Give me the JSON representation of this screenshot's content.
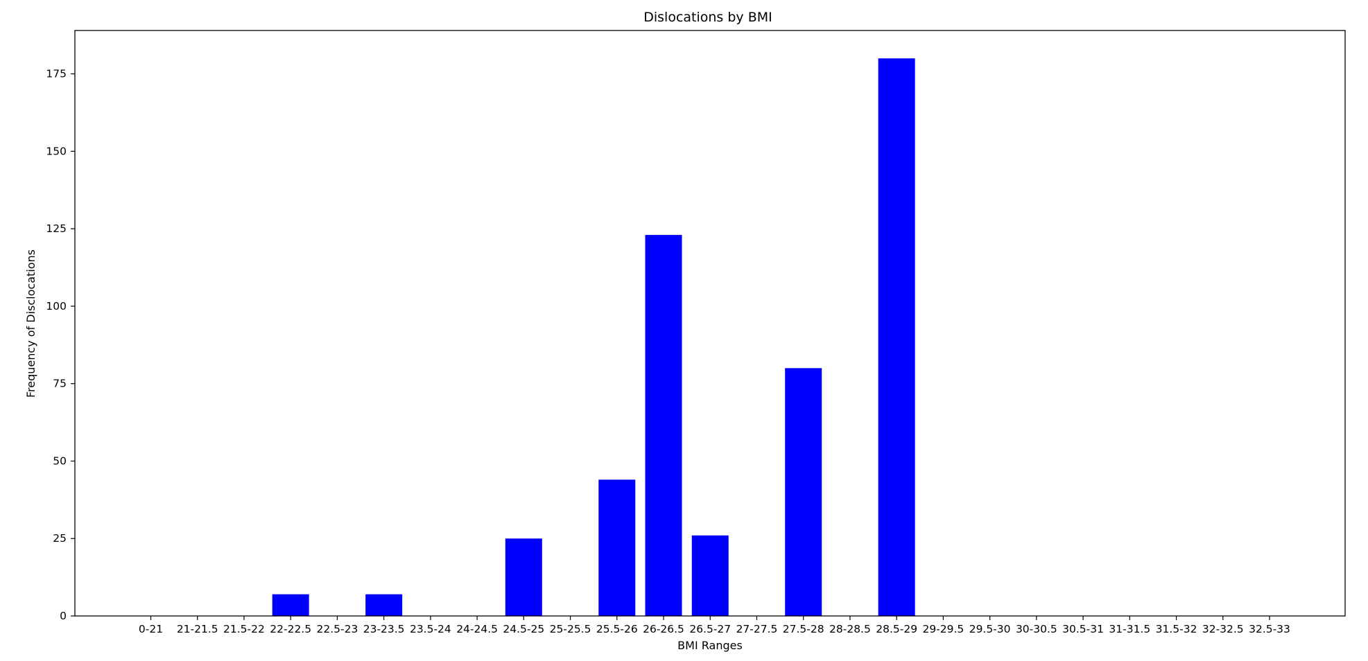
{
  "chart_data": {
    "type": "bar",
    "title": "Dislocations by BMI",
    "xlabel": "BMI Ranges",
    "ylabel": "Frequency of Disclocations",
    "categories": [
      "0-21",
      "21-21.5",
      "21.5-22",
      "22-22.5",
      "22.5-23",
      "23-23.5",
      "23.5-24",
      "24-24.5",
      "24.5-25",
      "25-25.5",
      "25.5-26",
      "26-26.5",
      "26.5-27",
      "27-27.5",
      "27.5-28",
      "28-28.5",
      "28.5-29",
      "29-29.5",
      "29.5-30",
      "30-30.5",
      "30.5-31",
      "31-31.5",
      "31.5-32",
      "32-32.5",
      "32.5-33"
    ],
    "values": [
      0,
      0,
      0,
      7,
      0,
      7,
      0,
      0,
      25,
      0,
      44,
      123,
      26,
      0,
      80,
      0,
      180,
      0,
      0,
      0,
      0,
      0,
      0,
      0,
      0
    ],
    "ylim": [
      0,
      189
    ],
    "yticks": [
      0,
      25,
      50,
      75,
      100,
      125,
      150,
      175
    ],
    "bar_color": "#0000ff",
    "grid": false,
    "legend": "none"
  }
}
